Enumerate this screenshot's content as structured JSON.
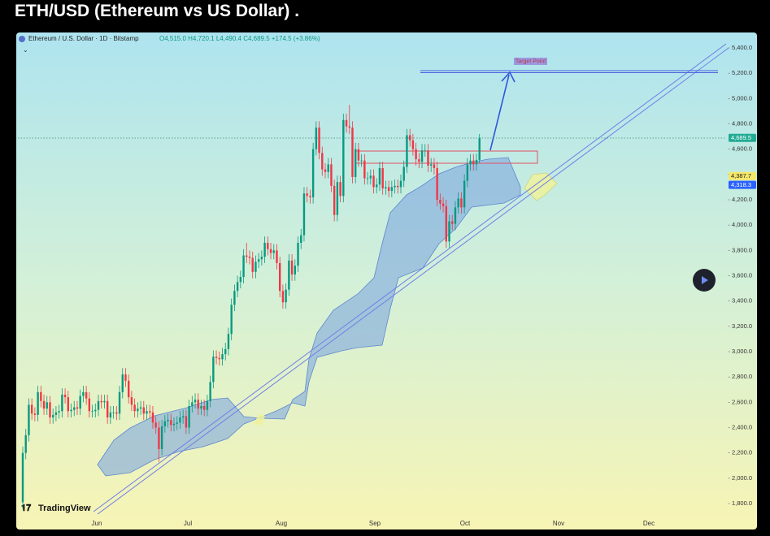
{
  "chart_data": {
    "type": "candlestick",
    "title": "ETH/USD (Ethereum vs US Dollar) .",
    "symbol_legend": "Ethereum / U.S. Dollar · 1D · Bitstamp",
    "ohlc_legend": "O4,515.0 H4,720.1 L4,490.4 C4,689.5 +174.5 (+3.86%)",
    "annotation": "Target Point",
    "brand": "TradingView",
    "xticks": [
      "Jun",
      "Jul",
      "Aug",
      "Sep",
      "Oct",
      "Nov",
      "Dec"
    ],
    "ylim": [
      1800,
      5400
    ],
    "yticks": [
      {
        "value": 1800,
        "label": "1,800.0"
      },
      {
        "value": 2000,
        "label": "2,000.0"
      },
      {
        "value": 2200,
        "label": "2,200.0"
      },
      {
        "value": 2400,
        "label": "2,400.0"
      },
      {
        "value": 2600,
        "label": "2,600.0"
      },
      {
        "value": 2800,
        "label": "2,800.0"
      },
      {
        "value": 3000,
        "label": "3,000.0"
      },
      {
        "value": 3200,
        "label": "3,200.0"
      },
      {
        "value": 3400,
        "label": "3,400.0"
      },
      {
        "value": 3600,
        "label": "3,600.0"
      },
      {
        "value": 3800,
        "label": "3,800.0"
      },
      {
        "value": 4000,
        "label": "4,000.0"
      },
      {
        "value": 4200,
        "label": "4,200.0"
      },
      {
        "value": 4400,
        "label": "4,400.0"
      },
      {
        "value": 4600,
        "label": "4,600.0"
      },
      {
        "value": 4800,
        "label": "4,800.0"
      },
      {
        "value": 5000,
        "label": "5,000.0"
      },
      {
        "value": 5200,
        "label": "5,200.0"
      },
      {
        "value": 5400,
        "label": "5,400.0"
      }
    ],
    "price_labels": [
      {
        "value": 4689.5,
        "label": "4,689.5",
        "color": "#22ab94"
      },
      {
        "value": 4387.7,
        "label": "4,387.7",
        "color": "#f5e76a"
      },
      {
        "value": 4318.3,
        "label": "4,318.3",
        "color": "#2962ff"
      }
    ],
    "up_color": "#089981",
    "down_color": "#f23645",
    "open": [
      1810,
      2200,
      2340,
      2580,
      2510,
      2500,
      2680,
      2610,
      2550,
      2600,
      2480,
      2500,
      2520,
      2530,
      2660,
      2640,
      2530,
      2540,
      2560,
      2550,
      2650,
      2680,
      2630,
      2530,
      2530,
      2540,
      2610,
      2600,
      2610,
      2480,
      2520,
      2520,
      2510,
      2680,
      2820,
      2770,
      2640,
      2580,
      2530,
      2550,
      2560,
      2510,
      2530,
      2520,
      2440,
      2400,
      2230,
      2410,
      2450,
      2460,
      2420,
      2430,
      2440,
      2480,
      2490,
      2400,
      2570,
      2600,
      2620,
      2550,
      2570,
      2540,
      2610,
      2760,
      2960,
      2950,
      2940,
      2980,
      3020,
      3140,
      3370,
      3480,
      3550,
      3590,
      3760,
      3750,
      3740,
      3630,
      3710,
      3730,
      3750,
      3860,
      3810,
      3780,
      3800,
      3700,
      3480,
      3390,
      3490,
      3720,
      3610,
      3680,
      3860,
      3920,
      4250,
      4230,
      4220,
      4600,
      4770,
      4570,
      4440,
      4420,
      4480,
      4310,
      4080,
      4340,
      4230,
      4830,
      4780,
      4770,
      4380,
      4600,
      4510,
      4510,
      4370,
      4370,
      4390,
      4300,
      4320,
      4450,
      4290,
      4300,
      4270,
      4300,
      4310,
      4300,
      4350,
      4460,
      4710,
      4670,
      4600,
      4520,
      4500,
      4590,
      4590,
      4470,
      4480,
      4450,
      4200,
      4170,
      4150,
      3870,
      4030,
      4010,
      4140,
      4210,
      4140,
      4350,
      4480,
      4510,
      4480,
      4515
    ],
    "high": [
      2250,
      2390,
      2630,
      2630,
      2560,
      2730,
      2730,
      2660,
      2650,
      2650,
      2550,
      2570,
      2580,
      2710,
      2710,
      2690,
      2590,
      2610,
      2610,
      2700,
      2730,
      2730,
      2680,
      2580,
      2590,
      2660,
      2660,
      2660,
      2660,
      2570,
      2570,
      2570,
      2730,
      2870,
      2870,
      2820,
      2690,
      2630,
      2600,
      2610,
      2610,
      2580,
      2580,
      2570,
      2490,
      2450,
      2460,
      2500,
      2510,
      2510,
      2480,
      2490,
      2530,
      2540,
      2540,
      2620,
      2650,
      2670,
      2670,
      2620,
      2620,
      2660,
      2810,
      3010,
      3010,
      3000,
      3030,
      3070,
      3190,
      3420,
      3530,
      3600,
      3640,
      3810,
      3860,
      3800,
      3790,
      3760,
      3780,
      3800,
      3910,
      3910,
      3860,
      3850,
      3850,
      3750,
      3530,
      3540,
      3770,
      3770,
      3730,
      3910,
      3970,
      4300,
      4300,
      4280,
      4650,
      4820,
      4820,
      4620,
      4490,
      4530,
      4530,
      4360,
      4390,
      4390,
      4880,
      4880,
      4950,
      4820,
      4650,
      4650,
      4560,
      4560,
      4420,
      4440,
      4440,
      4370,
      4500,
      4500,
      4350,
      4350,
      4350,
      4360,
      4360,
      4400,
      4510,
      4760,
      4760,
      4720,
      4650,
      4570,
      4640,
      4640,
      4640,
      4530,
      4530,
      4500,
      4250,
      4220,
      4200,
      4080,
      4080,
      4190,
      4260,
      4260,
      4400,
      4530,
      4560,
      4560,
      4565,
      4720.1
    ],
    "low": [
      1760,
      2150,
      2290,
      2460,
      2450,
      2450,
      2560,
      2500,
      2500,
      2430,
      2430,
      2450,
      2470,
      2480,
      2590,
      2480,
      2480,
      2490,
      2500,
      2500,
      2600,
      2580,
      2480,
      2480,
      2480,
      2490,
      2550,
      2550,
      2430,
      2430,
      2470,
      2460,
      2460,
      2630,
      2720,
      2590,
      2530,
      2480,
      2480,
      2500,
      2460,
      2460,
      2470,
      2390,
      2350,
      2130,
      2180,
      2360,
      2400,
      2370,
      2370,
      2380,
      2390,
      2430,
      2350,
      2350,
      2520,
      2550,
      2500,
      2500,
      2490,
      2490,
      2560,
      2710,
      2900,
      2890,
      2890,
      2930,
      2970,
      3090,
      3320,
      3430,
      3500,
      3540,
      3700,
      3690,
      3580,
      3580,
      3660,
      3680,
      3700,
      3760,
      3730,
      3730,
      3650,
      3430,
      3340,
      3340,
      3440,
      3560,
      3560,
      3630,
      3810,
      3870,
      4180,
      4170,
      4170,
      4550,
      4520,
      4390,
      4370,
      4370,
      4260,
      4030,
      4030,
      4180,
      4180,
      4730,
      4720,
      4330,
      4330,
      4460,
      4460,
      4320,
      4320,
      4320,
      4250,
      4250,
      4270,
      4240,
      4240,
      4220,
      4220,
      4250,
      4250,
      4250,
      4300,
      4410,
      4620,
      4550,
      4470,
      4450,
      4450,
      4540,
      4420,
      4420,
      4400,
      4150,
      4120,
      4100,
      3820,
      3820,
      3960,
      3960,
      4090,
      4090,
      4090,
      4300,
      4430,
      4430,
      4430,
      4490.4
    ],
    "close": [
      2200,
      2340,
      2580,
      2510,
      2500,
      2680,
      2610,
      2550,
      2600,
      2480,
      2500,
      2520,
      2530,
      2660,
      2640,
      2530,
      2540,
      2560,
      2550,
      2650,
      2680,
      2630,
      2530,
      2530,
      2540,
      2610,
      2600,
      2610,
      2480,
      2520,
      2520,
      2510,
      2680,
      2820,
      2770,
      2640,
      2580,
      2530,
      2550,
      2560,
      2510,
      2530,
      2520,
      2440,
      2400,
      2230,
      2410,
      2450,
      2460,
      2420,
      2430,
      2440,
      2480,
      2490,
      2400,
      2570,
      2600,
      2620,
      2550,
      2570,
      2540,
      2610,
      2760,
      2960,
      2950,
      2940,
      2980,
      3020,
      3140,
      3370,
      3480,
      3550,
      3590,
      3760,
      3750,
      3740,
      3630,
      3710,
      3730,
      3750,
      3860,
      3810,
      3780,
      3800,
      3700,
      3480,
      3390,
      3490,
      3720,
      3610,
      3680,
      3860,
      3920,
      4250,
      4230,
      4220,
      4600,
      4770,
      4570,
      4440,
      4420,
      4480,
      4310,
      4080,
      4340,
      4230,
      4830,
      4780,
      4770,
      4380,
      4600,
      4510,
      4510,
      4370,
      4370,
      4390,
      4300,
      4320,
      4450,
      4290,
      4300,
      4270,
      4300,
      4310,
      4300,
      4350,
      4460,
      4710,
      4670,
      4600,
      4520,
      4500,
      4590,
      4590,
      4470,
      4480,
      4450,
      4200,
      4170,
      4150,
      3870,
      4030,
      4010,
      4140,
      4210,
      4140,
      4350,
      4480,
      4510,
      4480,
      4515,
      4689.5
    ]
  }
}
